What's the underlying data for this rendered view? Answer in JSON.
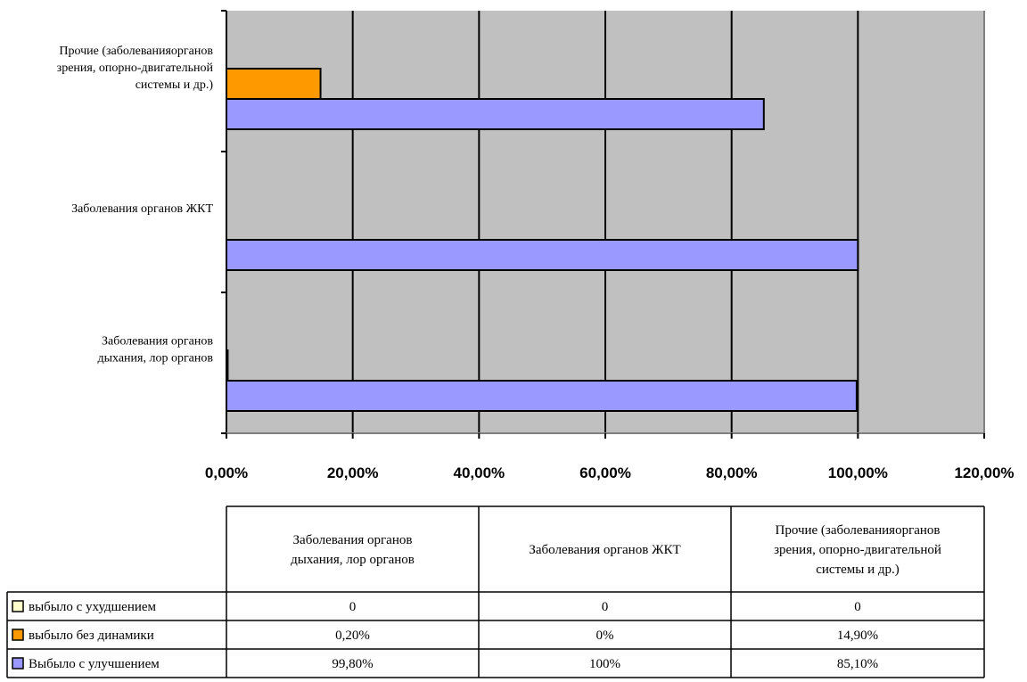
{
  "chart_data": {
    "type": "bar",
    "orientation": "horizontal",
    "categories": [
      "Заболевания органов дыхания, лор органов",
      "Заболевания органов ЖКТ",
      "Прочие (заболеванияорганов зрения, опорно-двигательной системы и др.)"
    ],
    "category_label_lines": [
      [
        "Заболевания органов",
        "дыхания, лор органов"
      ],
      [
        "Заболевания органов ЖКТ"
      ],
      [
        "Прочие (заболеванияорганов",
        "зрения, опорно-двигательной",
        "системы и др.)"
      ]
    ],
    "series": [
      {
        "name": "выбыло с ухудшением",
        "values": [
          0,
          0,
          0
        ],
        "color": "#FFFFCC"
      },
      {
        "name": "выбыло без динамики",
        "values": [
          0.2,
          0,
          14.9
        ],
        "color": "#FF9900"
      },
      {
        "name": "Выбыло с улучшением",
        "values": [
          99.8,
          100,
          85.1
        ],
        "color": "#9999FF"
      }
    ],
    "xlim": [
      0,
      120
    ],
    "x_ticks": [
      0,
      20,
      40,
      60,
      80,
      100,
      120
    ],
    "x_tick_labels": [
      "0,00%",
      "20,00%",
      "40,00%",
      "60,00%",
      "80,00%",
      "100,00%",
      "120,00%"
    ],
    "grid": "vertical",
    "plot_background": "#C0C0C0",
    "data_table": {
      "rows": [
        {
          "series": "выбыло с ухудшением",
          "cells": [
            "0",
            "0",
            "0"
          ]
        },
        {
          "series": "выбыло без динамики",
          "cells": [
            "0,20%",
            "0%",
            "14,90%"
          ]
        },
        {
          "series": "Выбыло с улучшением",
          "cells": [
            "99,80%",
            "100%",
            "85,10%"
          ]
        }
      ]
    }
  }
}
